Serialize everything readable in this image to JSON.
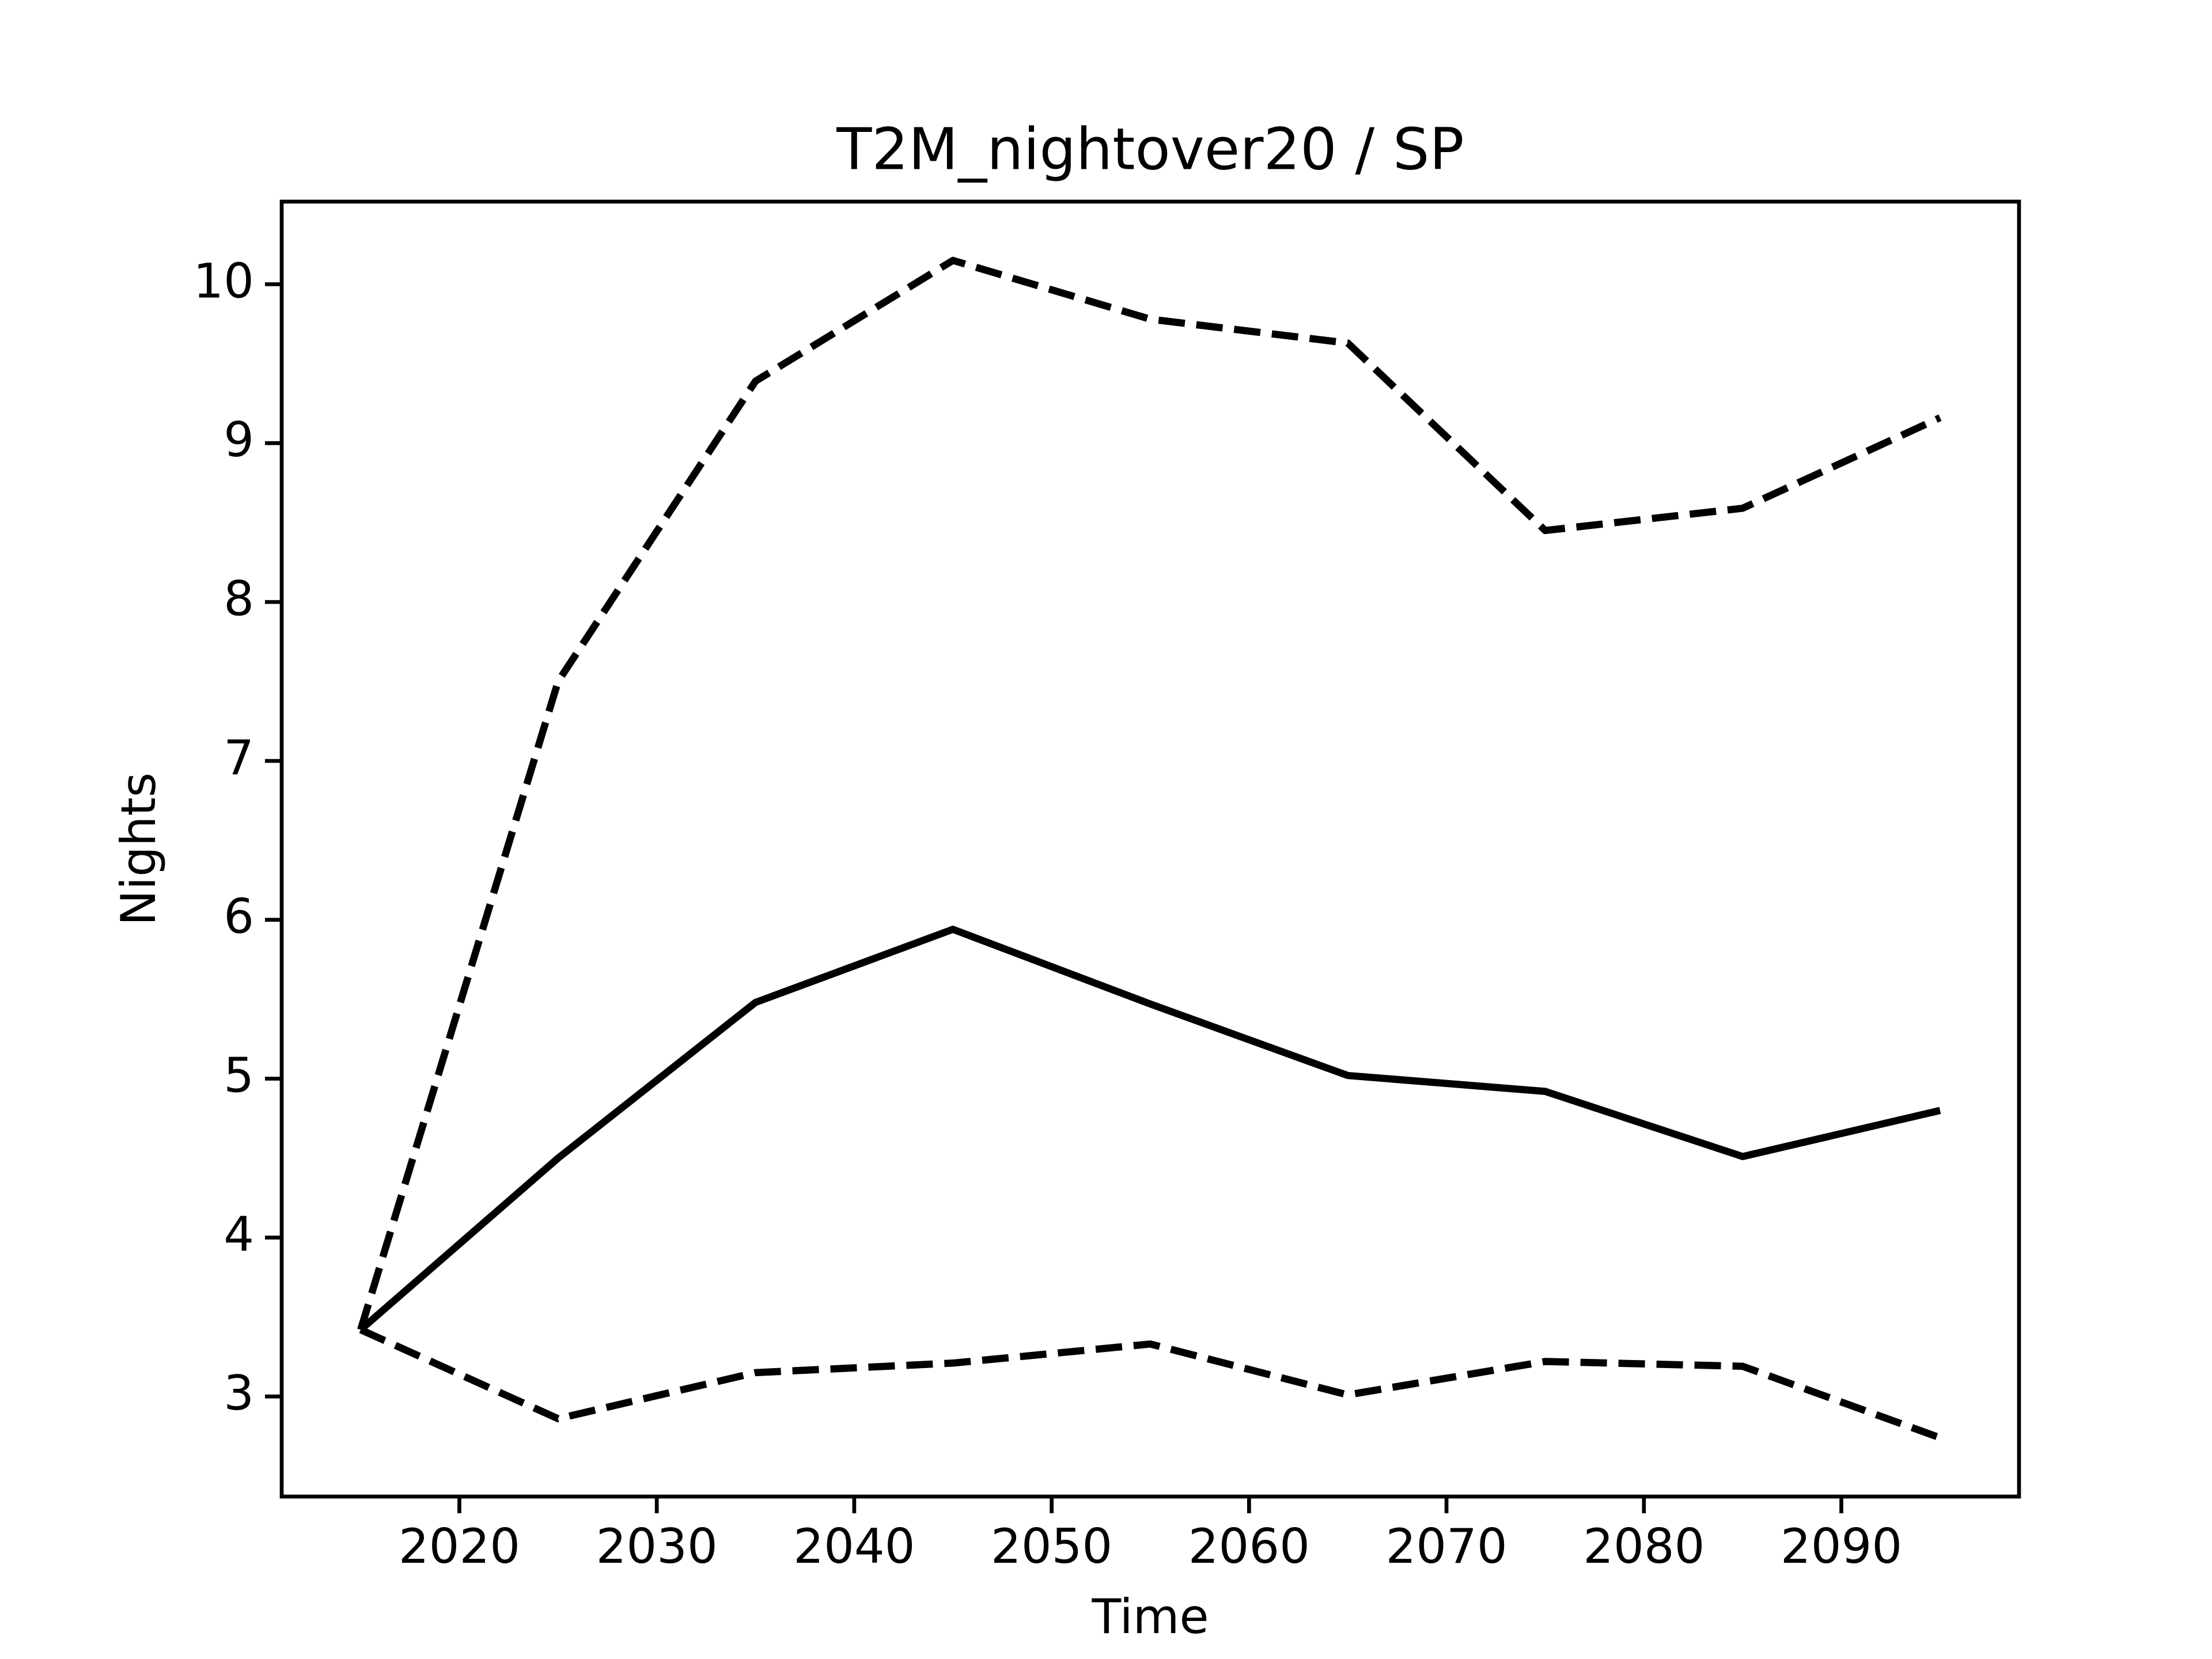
{
  "chart_data": {
    "type": "line",
    "title": "T2M_nightover20 / SP",
    "x_label": "Time",
    "y_label": "Nights",
    "x": [
      2015,
      2025,
      2035,
      2045,
      2055,
      2065,
      2075,
      2085,
      2095
    ],
    "series": [
      {
        "color": "#000000",
        "dash": "solid",
        "values": [
          3.42,
          4.5,
          5.48,
          5.94,
          5.47,
          5.02,
          4.92,
          4.51,
          4.8
        ]
      },
      {
        "color": "#000000",
        "dash": "dashed",
        "values": [
          3.42,
          7.5,
          9.39,
          10.15,
          9.78,
          9.63,
          8.45,
          8.59,
          9.16
        ]
      },
      {
        "color": "#000000",
        "dash": "dashed",
        "values": [
          3.42,
          2.86,
          3.15,
          3.21,
          3.33,
          3.01,
          3.22,
          3.19,
          2.74
        ]
      }
    ],
    "xlim": [
      2011,
      2099
    ],
    "ylim": [
      2.37,
      10.52
    ],
    "xticks": [
      2020,
      2030,
      2040,
      2050,
      2060,
      2070,
      2080,
      2090
    ],
    "yticks": [
      3,
      4,
      5,
      6,
      7,
      8,
      9,
      10
    ],
    "grid": false
  }
}
